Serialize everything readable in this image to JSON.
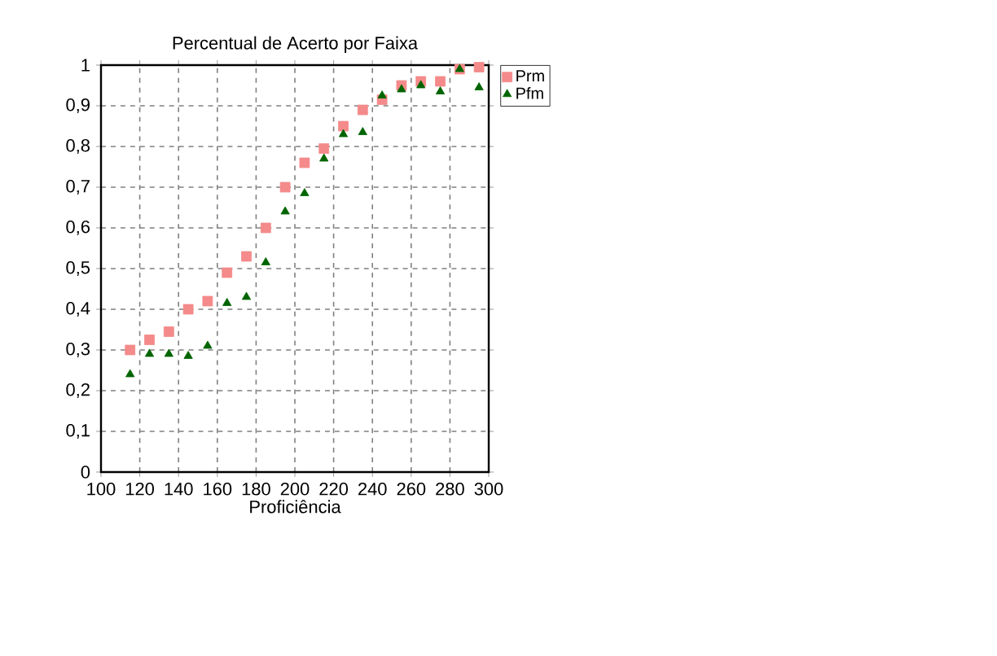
{
  "chart_data": {
    "type": "scatter",
    "title": "Percentual de Acerto por Faixa",
    "xlabel": "Proficiência",
    "x": [
      115,
      125,
      135,
      145,
      155,
      165,
      175,
      185,
      195,
      205,
      215,
      225,
      235,
      245,
      255,
      265,
      275,
      285,
      295
    ],
    "series": [
      {
        "name": "Prm",
        "color": "#f48a8a",
        "marker": "square",
        "values": [
          0.3,
          0.325,
          0.345,
          0.4,
          0.42,
          0.49,
          0.53,
          0.6,
          0.7,
          0.76,
          0.795,
          0.85,
          0.89,
          0.915,
          0.95,
          0.96,
          0.96,
          0.99,
          0.995
        ]
      },
      {
        "name": "Pfm",
        "color": "#006400",
        "marker": "triangle",
        "values": [
          0.24,
          0.29,
          0.29,
          0.285,
          0.31,
          0.415,
          0.43,
          0.515,
          0.64,
          0.685,
          0.77,
          0.83,
          0.835,
          0.925,
          0.94,
          0.95,
          0.935,
          0.99,
          0.945
        ]
      }
    ],
    "xlim": [
      100,
      300
    ],
    "ylim": [
      0,
      1
    ],
    "xticks": [
      100,
      120,
      140,
      160,
      180,
      200,
      220,
      240,
      260,
      280,
      300
    ],
    "yticks": [
      0,
      {
        "value": 0.1,
        "label": "0,1"
      },
      {
        "value": 0.2,
        "label": "0,2"
      },
      {
        "value": 0.3,
        "label": "0,3"
      },
      {
        "value": 0.4,
        "label": "0,4"
      },
      {
        "value": 0.5,
        "label": "0,5"
      },
      {
        "value": 0.6,
        "label": "0,6"
      },
      {
        "value": 0.7,
        "label": "0,7"
      },
      {
        "value": 0.8,
        "label": "0,8"
      },
      {
        "value": 0.9,
        "label": "0,9"
      },
      1
    ],
    "grid": true,
    "legend": "top right"
  }
}
